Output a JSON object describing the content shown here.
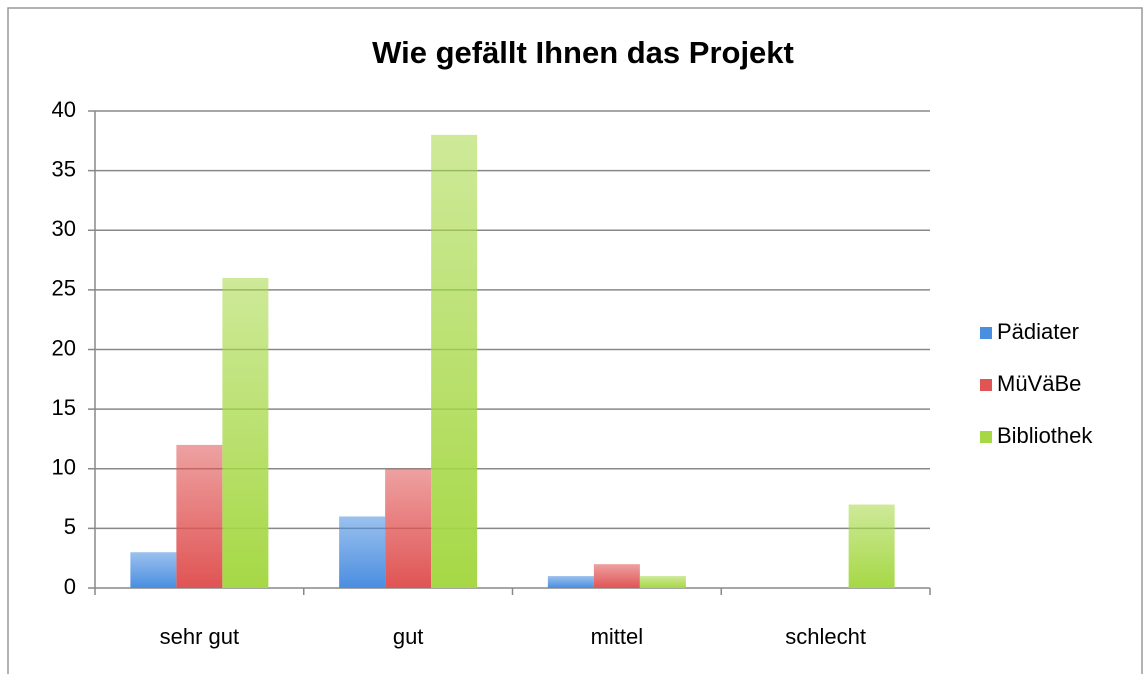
{
  "chart_data": {
    "type": "bar",
    "title": "Wie gefällt Ihnen das Projekt",
    "categories": [
      "sehr gut",
      "gut",
      "mittel",
      "schlecht"
    ],
    "series": [
      {
        "name": "Pädiater",
        "color": "#4a8ee0",
        "values": [
          3,
          6,
          1,
          0
        ]
      },
      {
        "name": "MüVäBe",
        "color": "#e05454",
        "values": [
          12,
          10,
          2,
          0
        ]
      },
      {
        "name": "Bibliothek",
        "color": "#a6d846",
        "values": [
          26,
          38,
          1,
          7
        ]
      }
    ],
    "ylim": [
      0,
      40
    ],
    "yticks": [
      0,
      5,
      10,
      15,
      20,
      25,
      30,
      35,
      40
    ],
    "grid": true,
    "legend": "right"
  }
}
